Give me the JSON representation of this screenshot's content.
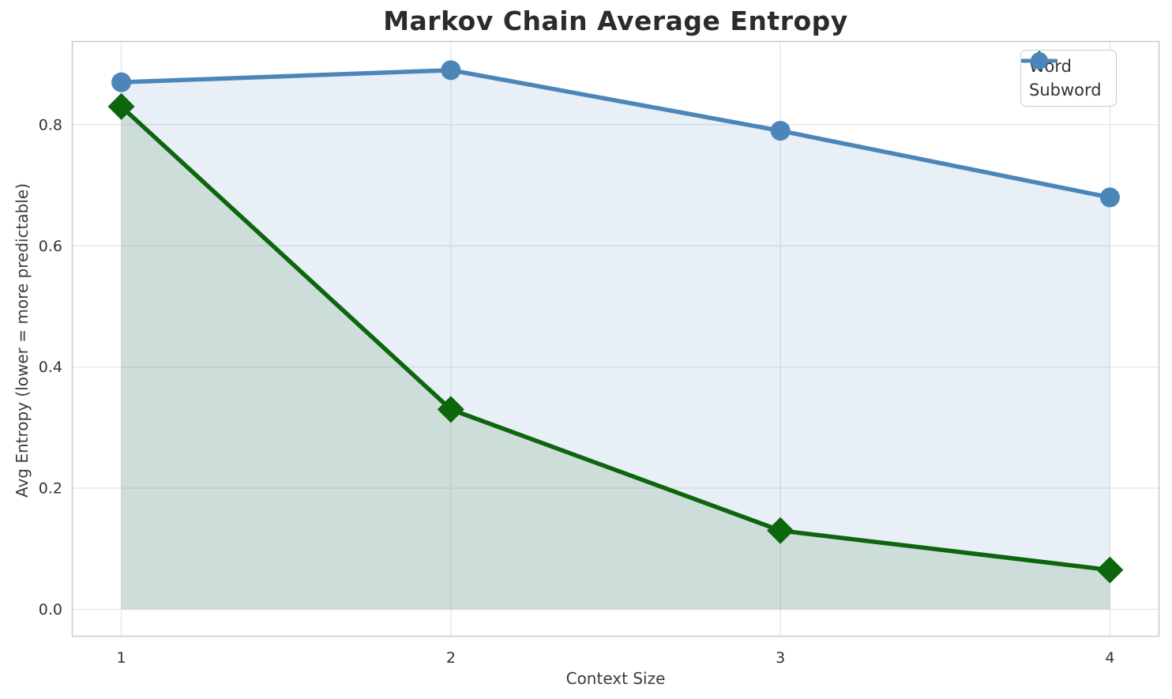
{
  "chart_data": {
    "type": "line",
    "title": "Markov Chain Average Entropy",
    "xlabel": "Context Size",
    "ylabel": "Avg Entropy (lower = more predictable)",
    "x": [
      1,
      2,
      3,
      4
    ],
    "series": [
      {
        "name": "Word",
        "values": [
          0.83,
          0.33,
          0.13,
          0.065
        ],
        "color": "#0d650d",
        "marker": "diamond",
        "fill_alpha": 0.12
      },
      {
        "name": "Subword",
        "values": [
          0.87,
          0.89,
          0.79,
          0.68
        ],
        "color": "#4c86b9",
        "marker": "circle",
        "fill_alpha": 0.13
      }
    ],
    "xticks": [
      "1",
      "2",
      "3",
      "4"
    ],
    "yticks": [
      "0.0",
      "0.2",
      "0.4",
      "0.6",
      "0.8"
    ],
    "xlim": [
      0.85,
      4.15
    ],
    "ylim": [
      -0.045,
      0.938
    ],
    "grid": true,
    "fill_to_zero": true,
    "legend_position": "upper right",
    "legend_entries": [
      "Word",
      "Subword"
    ]
  },
  "style": {
    "background": "#ffffff",
    "grid_color": "#e7e7e7",
    "spine_color": "#cccccc",
    "title_color": "#2b2b2b",
    "text_color": "#3b3b3b",
    "tick_color": "#333333"
  }
}
